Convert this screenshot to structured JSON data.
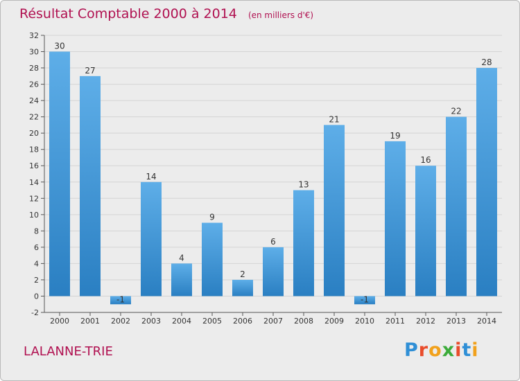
{
  "title": {
    "main": "Résultat Comptable 2000 à 2014",
    "unit": "(en milliers d'€)"
  },
  "commune": "LALANNE-TRIE",
  "logo": {
    "text": "Proxiti",
    "colors": [
      "#2f8fd6",
      "#e94c2b",
      "#f1a11c",
      "#3cab3a",
      "#e94c2b",
      "#2f8fd6",
      "#f1a11c"
    ]
  },
  "colors": {
    "title": "#b01050",
    "bar_light": "#5eaee8",
    "bar_dark": "#2a7fc2",
    "background": "#ececec",
    "gridline": "#d4d4d4"
  },
  "chart_data": {
    "type": "bar",
    "title": "Résultat Comptable 2000 à 2014",
    "xlabel": "",
    "ylabel": "",
    "categories": [
      "2000",
      "2001",
      "2002",
      "2003",
      "2004",
      "2005",
      "2006",
      "2007",
      "2008",
      "2009",
      "2010",
      "2011",
      "2012",
      "2013",
      "2014"
    ],
    "values": [
      30,
      27,
      -1,
      14,
      4,
      9,
      2,
      6,
      13,
      21,
      -1,
      19,
      16,
      22,
      28
    ],
    "ylim": [
      -2,
      32
    ],
    "yticks": [
      -2,
      0,
      2,
      4,
      6,
      8,
      10,
      12,
      14,
      16,
      18,
      20,
      22,
      24,
      26,
      28,
      30,
      32
    ],
    "grid": true
  }
}
